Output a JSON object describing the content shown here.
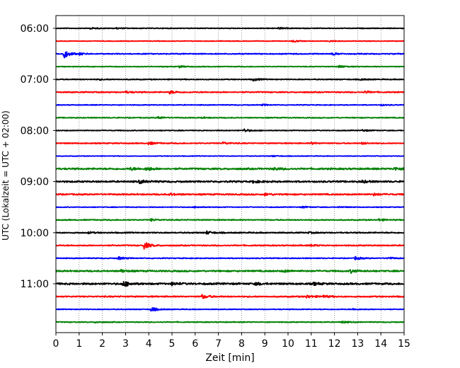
{
  "chart_data": {
    "type": "line",
    "title": "",
    "xlabel": "Zeit  [min]",
    "ylabel": "UTC (Lokalzeit = UTC + 02:00)",
    "xlim": [
      0,
      15
    ],
    "x_ticks": [
      0,
      1,
      2,
      3,
      4,
      5,
      6,
      7,
      8,
      9,
      10,
      11,
      12,
      13,
      14,
      15
    ],
    "grid": {
      "x": true,
      "y": false,
      "style": "dotted"
    },
    "traces_per_hour": 4,
    "trace_interval_min": 15,
    "start_time": "06:00",
    "colors": [
      "#000000",
      "#ff0000",
      "#0000ff",
      "#008000"
    ],
    "y_ticks": [
      {
        "label": "06:00",
        "trace_index": 0
      },
      {
        "label": "07:00",
        "trace_index": 4
      },
      {
        "label": "08:00",
        "trace_index": 8
      },
      {
        "label": "09:00",
        "trace_index": 12
      },
      {
        "label": "10:00",
        "trace_index": 16
      },
      {
        "label": "11:00",
        "trace_index": 20
      }
    ],
    "traces": [
      {
        "start": "06:00",
        "color": "#000000",
        "noise": 0.6,
        "events": [
          [
            1.5,
            1.0
          ],
          [
            2.6,
            0.8
          ],
          [
            9.6,
            1.2
          ]
        ]
      },
      {
        "start": "06:15",
        "color": "#ff0000",
        "noise": 0.5,
        "events": [
          [
            10.2,
            1.5
          ],
          [
            11.8,
            0.8
          ]
        ]
      },
      {
        "start": "06:30",
        "color": "#0000ff",
        "noise": 0.8,
        "events": [
          [
            0.35,
            5.5
          ],
          [
            1.0,
            1.2
          ],
          [
            11.9,
            1.5
          ]
        ]
      },
      {
        "start": "06:45",
        "color": "#008000",
        "noise": 0.6,
        "events": [
          [
            5.3,
            1.4
          ],
          [
            12.2,
            1.8
          ]
        ]
      },
      {
        "start": "07:00",
        "color": "#000000",
        "noise": 0.7,
        "events": [
          [
            1.8,
            0.8
          ],
          [
            8.5,
            1.8
          ],
          [
            13.1,
            1.0
          ]
        ]
      },
      {
        "start": "07:15",
        "color": "#ff0000",
        "noise": 0.9,
        "events": [
          [
            3.0,
            1.2
          ],
          [
            4.9,
            2.0
          ],
          [
            13.3,
            1.6
          ]
        ]
      },
      {
        "start": "07:30",
        "color": "#0000ff",
        "noise": 0.6,
        "events": [
          [
            8.9,
            1.0
          ],
          [
            14.0,
            0.8
          ]
        ]
      },
      {
        "start": "07:45",
        "color": "#008000",
        "noise": 0.7,
        "events": [
          [
            4.4,
            1.8
          ],
          [
            6.3,
            0.8
          ]
        ]
      },
      {
        "start": "08:00",
        "color": "#000000",
        "noise": 0.6,
        "events": [
          [
            8.1,
            2.2
          ],
          [
            13.2,
            1.3
          ]
        ]
      },
      {
        "start": "08:15",
        "color": "#ff0000",
        "noise": 0.8,
        "events": [
          [
            4.0,
            2.0
          ],
          [
            7.2,
            1.6
          ],
          [
            11.0,
            1.2
          ],
          [
            13.2,
            1.3
          ]
        ]
      },
      {
        "start": "08:30",
        "color": "#0000ff",
        "noise": 0.5,
        "events": [
          [
            9.3,
            0.8
          ]
        ]
      },
      {
        "start": "08:45",
        "color": "#008000",
        "noise": 1.3,
        "events": [
          [
            3.2,
            1.8
          ],
          [
            3.9,
            2.4
          ],
          [
            9.4,
            1.8
          ],
          [
            14.6,
            2.0
          ]
        ]
      },
      {
        "start": "09:00",
        "color": "#000000",
        "noise": 1.3,
        "events": [
          [
            3.6,
            2.2
          ],
          [
            8.5,
            1.8
          ],
          [
            13.2,
            1.6
          ]
        ]
      },
      {
        "start": "09:15",
        "color": "#ff0000",
        "noise": 1.1,
        "events": [
          [
            4.9,
            1.4
          ],
          [
            9.0,
            1.6
          ],
          [
            13.7,
            1.4
          ]
        ]
      },
      {
        "start": "09:30",
        "color": "#0000ff",
        "noise": 0.6,
        "events": [
          [
            6.0,
            1.0
          ],
          [
            10.6,
            1.2
          ],
          [
            12.2,
            0.8
          ]
        ]
      },
      {
        "start": "09:45",
        "color": "#008000",
        "noise": 0.8,
        "events": [
          [
            4.1,
            1.5
          ],
          [
            13.9,
            1.4
          ]
        ]
      },
      {
        "start": "10:00",
        "color": "#000000",
        "noise": 0.9,
        "events": [
          [
            1.4,
            1.0
          ],
          [
            6.5,
            2.0
          ],
          [
            10.9,
            0.8
          ]
        ]
      },
      {
        "start": "10:15",
        "color": "#ff0000",
        "noise": 0.9,
        "events": [
          [
            3.8,
            4.8
          ],
          [
            11.0,
            1.0
          ]
        ]
      },
      {
        "start": "10:30",
        "color": "#0000ff",
        "noise": 0.7,
        "events": [
          [
            2.7,
            2.0
          ],
          [
            12.9,
            2.2
          ],
          [
            14.3,
            1.4
          ]
        ]
      },
      {
        "start": "10:45",
        "color": "#008000",
        "noise": 1.2,
        "events": [
          [
            2.8,
            1.6
          ],
          [
            9.8,
            1.4
          ],
          [
            12.7,
            2.2
          ]
        ]
      },
      {
        "start": "11:00",
        "color": "#000000",
        "noise": 1.4,
        "events": [
          [
            2.9,
            4.0
          ],
          [
            5.0,
            1.8
          ],
          [
            8.6,
            1.6
          ],
          [
            11.1,
            1.6
          ]
        ]
      },
      {
        "start": "11:15",
        "color": "#ff0000",
        "noise": 1.0,
        "events": [
          [
            6.3,
            2.6
          ],
          [
            10.8,
            2.0
          ],
          [
            11.5,
            1.6
          ]
        ]
      },
      {
        "start": "11:30",
        "color": "#0000ff",
        "noise": 0.6,
        "events": [
          [
            4.1,
            3.2
          ],
          [
            12.8,
            0.8
          ]
        ]
      },
      {
        "start": "11:45",
        "color": "#008000",
        "noise": 0.7,
        "events": [
          [
            1.7,
            1.0
          ],
          [
            12.3,
            1.4
          ]
        ]
      }
    ]
  }
}
